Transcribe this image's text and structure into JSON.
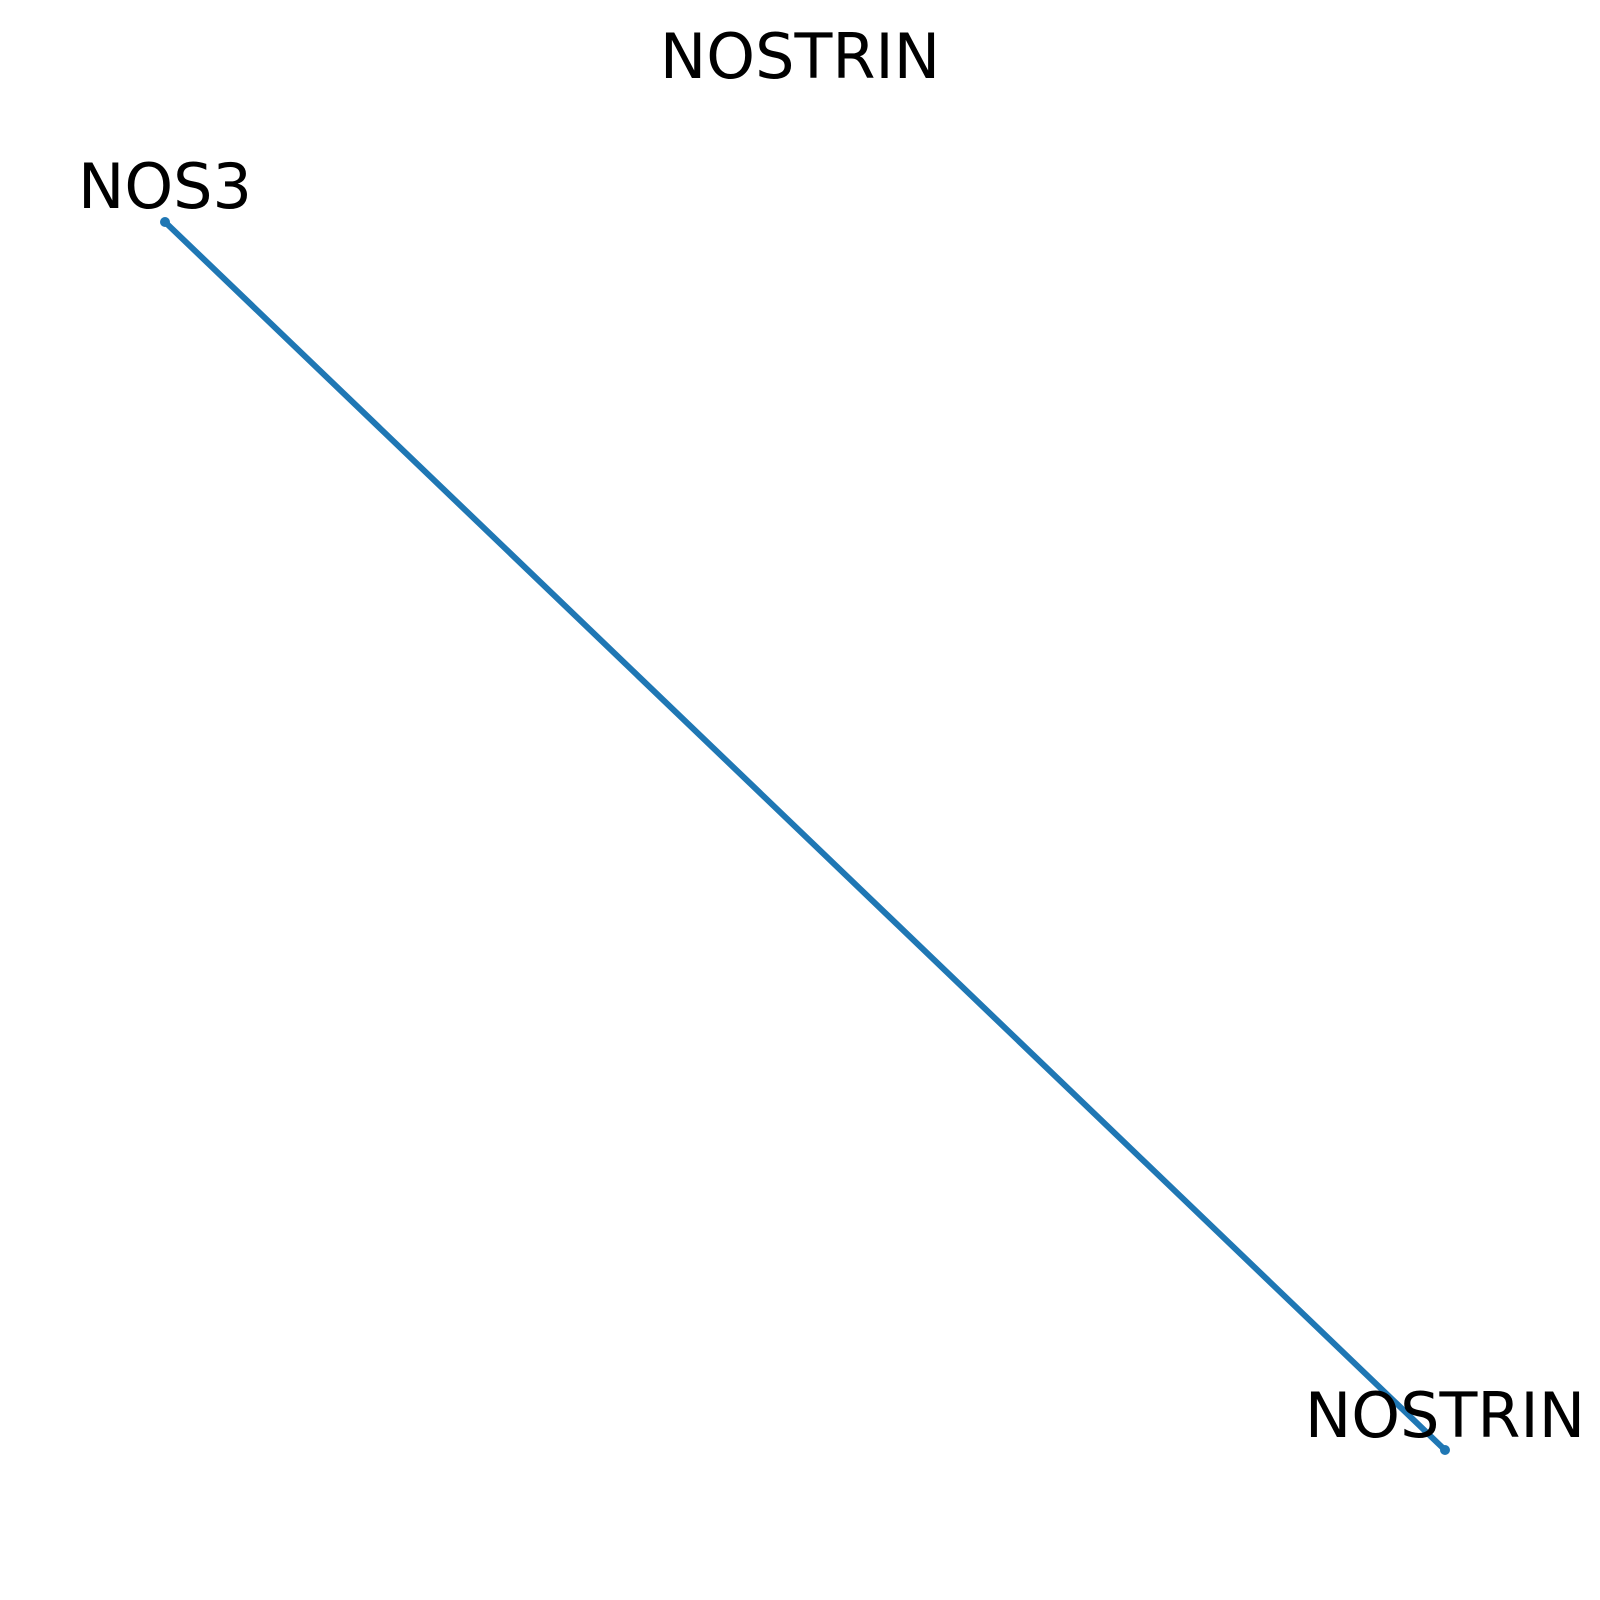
{
  "title": "NOSTRIN",
  "graph": {
    "nodes": [
      {
        "id": "NOS3",
        "label": "NOS3"
      },
      {
        "id": "NOSTRIN",
        "label": "NOSTRIN"
      }
    ],
    "edges": [
      {
        "source": "NOS3",
        "target": "NOSTRIN"
      }
    ],
    "edge_color": "#1f77b4",
    "node_color": "#1f77b4",
    "label_color": "#000000"
  }
}
